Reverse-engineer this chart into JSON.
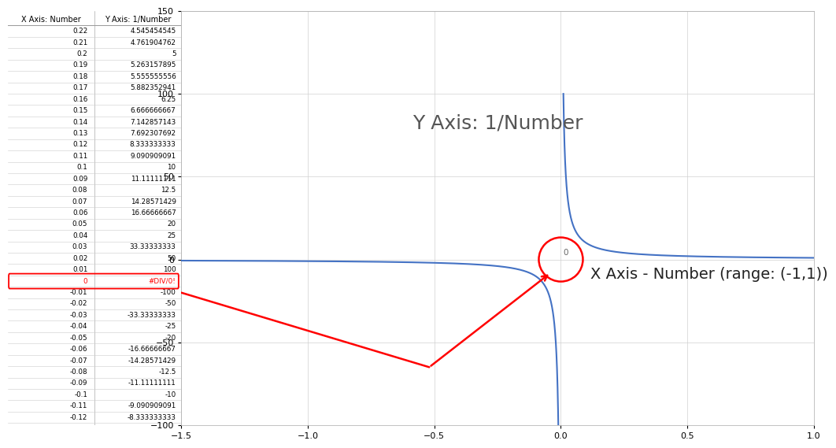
{
  "x_min": -1.5,
  "x_max": 1.0,
  "y_min": -100,
  "y_max": 150,
  "curve_color": "#4472C4",
  "curve_linewidth": 1.5,
  "background_color": "#FFFFFF",
  "plot_bg_color": "#FFFFFF",
  "grid_color": "#D0D0D0",
  "annotation_text_y": "Y Axis: 1/Number",
  "annotation_text_x": "X Axis - Number (range: (-1,1))",
  "red_color": "#FF0000",
  "red_line_points": [
    [
      -1.5,
      -20
    ],
    [
      -0.52,
      -65
    ],
    [
      -0.04,
      -8
    ]
  ],
  "yticks": [
    -100,
    -50,
    0,
    50,
    100,
    150
  ],
  "xticks": [
    -1.5,
    -1.0,
    -0.5,
    0.0,
    0.5,
    1.0
  ],
  "x_data_start": 0.22,
  "x_data_end": -0.12,
  "x_data_step": 0.01
}
